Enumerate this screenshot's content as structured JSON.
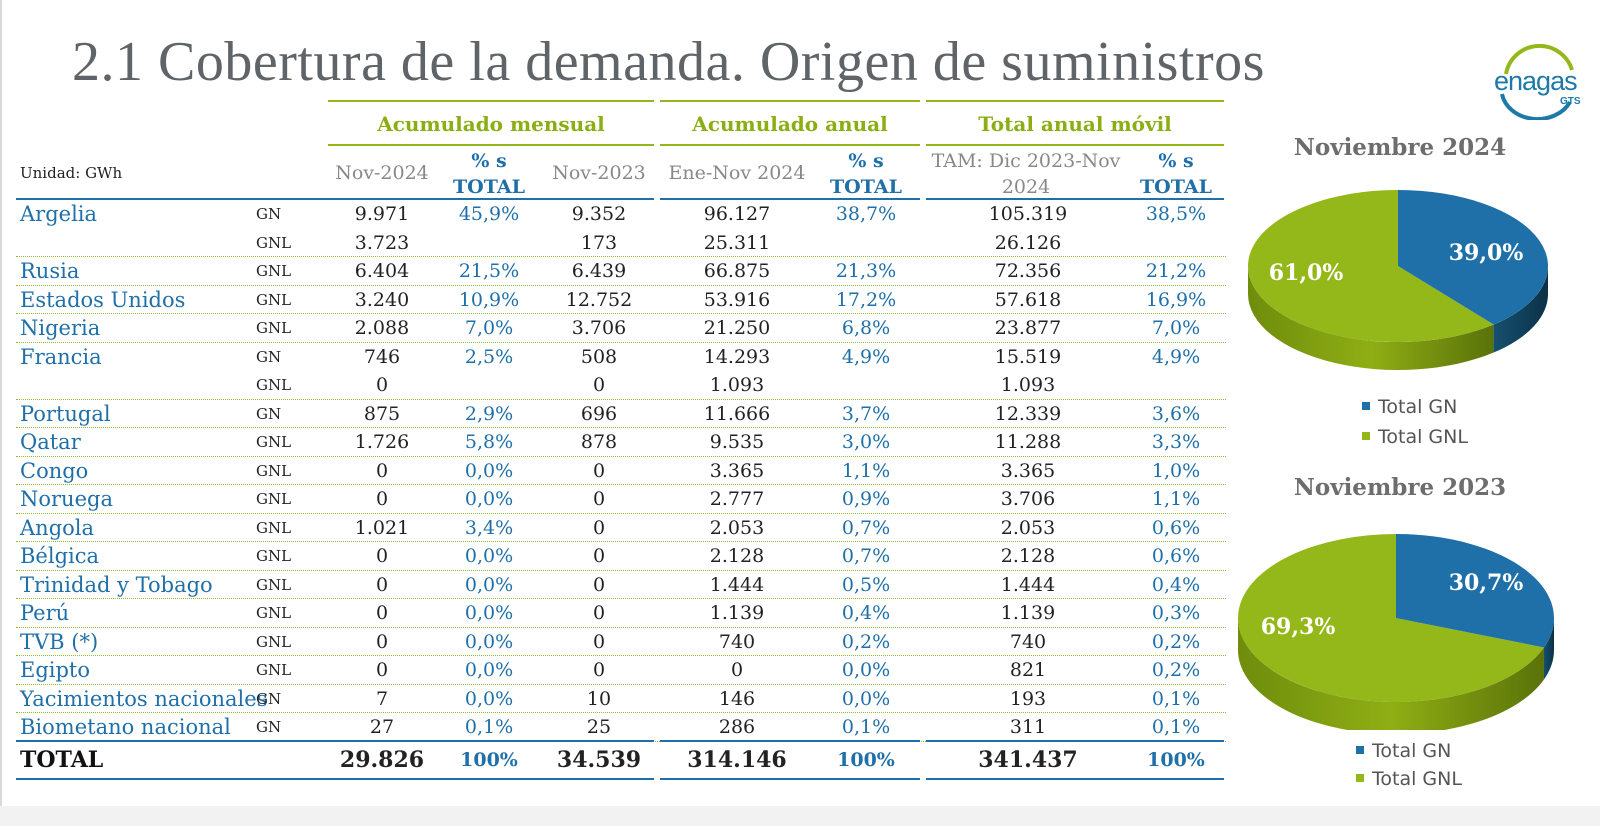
{
  "title": "2.1 Cobertura de la demanda. Origen de suministros",
  "logo": {
    "text": "enagas",
    "sub": "GTS"
  },
  "unit": "Unidad: GWh",
  "sections": {
    "mensual": "Acumulado mensual",
    "anual": "Acumulado anual",
    "movil": "Total anual móvil"
  },
  "columns": {
    "nov2024": "Nov-2024",
    "pct_line1": "% s",
    "pct_line2": "TOTAL",
    "nov2023": "Nov-2023",
    "enenov": "Ene-Nov 2024",
    "tam_line1": "TAM: Dic 2023-Nov",
    "tam_line2": "2024"
  },
  "rows": [
    {
      "country": "Argelia",
      "type": "GN",
      "nov2024": "9.971",
      "pct_m": "45,9%",
      "nov2023": "9.352",
      "enenov": "96.127",
      "pct_a": "38,7%",
      "tam": "105.319",
      "pct_t": "38,5%"
    },
    {
      "country": "",
      "type": "GNL",
      "nov2024": "3.723",
      "pct_m": "",
      "nov2023": "173",
      "enenov": "25.311",
      "pct_a": "",
      "tam": "26.126",
      "pct_t": ""
    },
    {
      "country": "Rusia",
      "type": "GNL",
      "nov2024": "6.404",
      "pct_m": "21,5%",
      "nov2023": "6.439",
      "enenov": "66.875",
      "pct_a": "21,3%",
      "tam": "72.356",
      "pct_t": "21,2%"
    },
    {
      "country": "Estados Unidos",
      "type": "GNL",
      "nov2024": "3.240",
      "pct_m": "10,9%",
      "nov2023": "12.752",
      "enenov": "53.916",
      "pct_a": "17,2%",
      "tam": "57.618",
      "pct_t": "16,9%"
    },
    {
      "country": "Nigeria",
      "type": "GNL",
      "nov2024": "2.088",
      "pct_m": "7,0%",
      "nov2023": "3.706",
      "enenov": "21.250",
      "pct_a": "6,8%",
      "tam": "23.877",
      "pct_t": "7,0%"
    },
    {
      "country": "Francia",
      "type": "GN",
      "nov2024": "746",
      "pct_m": "2,5%",
      "nov2023": "508",
      "enenov": "14.293",
      "pct_a": "4,9%",
      "tam": "15.519",
      "pct_t": "4,9%"
    },
    {
      "country": "",
      "type": "GNL",
      "nov2024": "0",
      "pct_m": "",
      "nov2023": "0",
      "enenov": "1.093",
      "pct_a": "",
      "tam": "1.093",
      "pct_t": ""
    },
    {
      "country": "Portugal",
      "type": "GN",
      "nov2024": "875",
      "pct_m": "2,9%",
      "nov2023": "696",
      "enenov": "11.666",
      "pct_a": "3,7%",
      "tam": "12.339",
      "pct_t": "3,6%"
    },
    {
      "country": "Qatar",
      "type": "GNL",
      "nov2024": "1.726",
      "pct_m": "5,8%",
      "nov2023": "878",
      "enenov": "9.535",
      "pct_a": "3,0%",
      "tam": "11.288",
      "pct_t": "3,3%"
    },
    {
      "country": "Congo",
      "type": "GNL",
      "nov2024": "0",
      "pct_m": "0,0%",
      "nov2023": "0",
      "enenov": "3.365",
      "pct_a": "1,1%",
      "tam": "3.365",
      "pct_t": "1,0%"
    },
    {
      "country": "Noruega",
      "type": "GNL",
      "nov2024": "0",
      "pct_m": "0,0%",
      "nov2023": "0",
      "enenov": "2.777",
      "pct_a": "0,9%",
      "tam": "3.706",
      "pct_t": "1,1%"
    },
    {
      "country": "Angola",
      "type": "GNL",
      "nov2024": "1.021",
      "pct_m": "3,4%",
      "nov2023": "0",
      "enenov": "2.053",
      "pct_a": "0,7%",
      "tam": "2.053",
      "pct_t": "0,6%"
    },
    {
      "country": "Bélgica",
      "type": "GNL",
      "nov2024": "0",
      "pct_m": "0,0%",
      "nov2023": "0",
      "enenov": "2.128",
      "pct_a": "0,7%",
      "tam": "2.128",
      "pct_t": "0,6%"
    },
    {
      "country": "Trinidad y Tobago",
      "type": "GNL",
      "nov2024": "0",
      "pct_m": "0,0%",
      "nov2023": "0",
      "enenov": "1.444",
      "pct_a": "0,5%",
      "tam": "1.444",
      "pct_t": "0,4%"
    },
    {
      "country": "Perú",
      "type": "GNL",
      "nov2024": "0",
      "pct_m": "0,0%",
      "nov2023": "0",
      "enenov": "1.139",
      "pct_a": "0,4%",
      "tam": "1.139",
      "pct_t": "0,3%"
    },
    {
      "country": "TVB (*)",
      "type": "GNL",
      "nov2024": "0",
      "pct_m": "0,0%",
      "nov2023": "0",
      "enenov": "740",
      "pct_a": "0,2%",
      "tam": "740",
      "pct_t": "0,2%"
    },
    {
      "country": "Egipto",
      "type": "GNL",
      "nov2024": "0",
      "pct_m": "0,0%",
      "nov2023": "0",
      "enenov": "0",
      "pct_a": "0,0%",
      "tam": "821",
      "pct_t": "0,2%"
    },
    {
      "country": "Yacimientos nacionales",
      "type": "GN",
      "nov2024": "7",
      "pct_m": "0,0%",
      "nov2023": "10",
      "enenov": "146",
      "pct_a": "0,0%",
      "tam": "193",
      "pct_t": "0,1%"
    },
    {
      "country": "Biometano nacional",
      "type": "GN",
      "nov2024": "27",
      "pct_m": "0,1%",
      "nov2023": "25",
      "enenov": "286",
      "pct_a": "0,1%",
      "tam": "311",
      "pct_t": "0,1%"
    }
  ],
  "total": {
    "label": "TOTAL",
    "nov2024": "29.826",
    "pct_m": "100%",
    "nov2023": "34.539",
    "enenov": "314.146",
    "pct_a": "100%",
    "tam": "341.437",
    "pct_t": "100%"
  },
  "colors": {
    "gn": "#1f6fa8",
    "gnl": "#94b819",
    "accent_green": "#8bae12",
    "text_blue": "#1f6fa8"
  },
  "chart_data": [
    {
      "type": "pie",
      "title": "Noviembre  2024",
      "categories": [
        "Total GN",
        "Total GNL"
      ],
      "values": [
        39.0,
        61.0
      ],
      "labels": [
        "39,0%",
        "61,0%"
      ],
      "legend": "bottom"
    },
    {
      "type": "pie",
      "title": "Noviembre  2023",
      "categories": [
        "Total GN",
        "Total GNL"
      ],
      "values": [
        30.7,
        69.3
      ],
      "labels": [
        "30,7%",
        "69,3%"
      ],
      "legend": "bottom"
    }
  ]
}
